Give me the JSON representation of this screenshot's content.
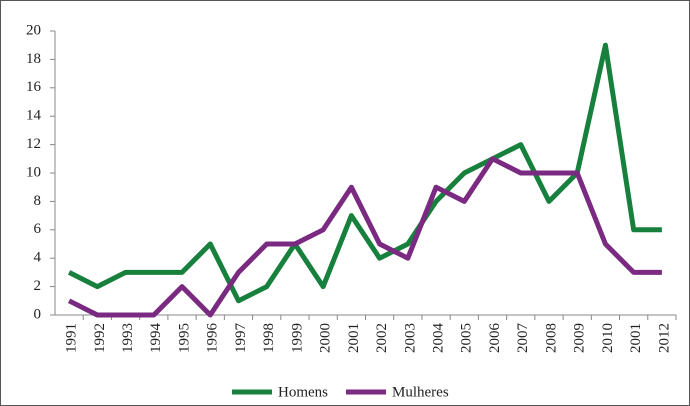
{
  "chart_data": {
    "type": "line",
    "categories": [
      "1991",
      "1992",
      "1993",
      "1994",
      "1995",
      "1996",
      "1997",
      "1998",
      "1999",
      "2000",
      "2001",
      "2002",
      "2003",
      "2004",
      "2005",
      "2006",
      "2007",
      "2008",
      "2009",
      "2010",
      "2001",
      "2012"
    ],
    "series": [
      {
        "name": "Homens",
        "color": "#17803d",
        "values": [
          3,
          2,
          3,
          3,
          3,
          5,
          1,
          2,
          5,
          2,
          7,
          4,
          5,
          8,
          10,
          11,
          12,
          8,
          10,
          19,
          6,
          6
        ]
      },
      {
        "name": "Mulheres",
        "color": "#7a2a80",
        "values": [
          1,
          0,
          0,
          0,
          2,
          0,
          3,
          5,
          5,
          6,
          9,
          5,
          4,
          9,
          8,
          11,
          10,
          10,
          10,
          5,
          3,
          3
        ]
      }
    ],
    "ylim": [
      0,
      20
    ],
    "yticks": [
      0,
      2,
      4,
      6,
      8,
      10,
      12,
      14,
      16,
      18,
      20
    ],
    "legend": "bottom"
  }
}
